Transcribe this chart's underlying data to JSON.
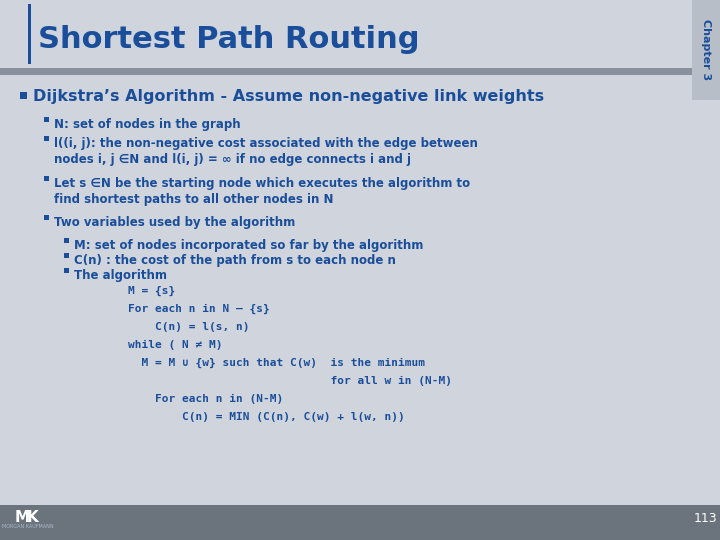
{
  "title": "Shortest Path Routing",
  "chapter_label": "Chapter 3",
  "title_color": "#1F5CA8",
  "background_color": "#D0D4DC",
  "header_bar_color": "#8A919E",
  "chapter_bg": "#B8BEC8",
  "footer_bg": "#6B737C",
  "page_number": "113",
  "blue_text": "#1A4E9A",
  "bullet1": "Dijkstra’s Algorithm - Assume non-negative link weights",
  "sub_bullets": [
    "N: set of nodes in the graph",
    "l((i, j): the non-negative cost associated with the edge between\nnodes i, j ∈N and l(i, j) = ∞ if no edge connects i and j",
    "Let s ∈N be the starting node which executes the algorithm to\nfind shortest paths to all other nodes in N",
    "Two variables used by the algorithm"
  ],
  "sub_sub_bullets": [
    "M: set of nodes incorporated so far by the algorithm",
    "C(n) : the cost of the path from s to each node n",
    "The algorithm"
  ],
  "code_lines": [
    "M = {s}",
    "For each n in N – {s}",
    "    C(n) = l(s, n)",
    "while ( N ≠ M)",
    "  M = M ∪ {w} such that C(w)  is the minimum",
    "                              for all w in (N-M)",
    "    For each n in (N-M)",
    "        C(n) = MIN (C(n), C(w) + l(w, n))"
  ]
}
